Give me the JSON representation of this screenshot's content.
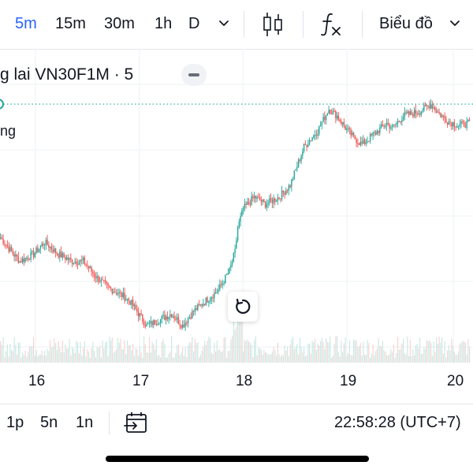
{
  "toolbar": {
    "timeframes": [
      "5m",
      "15m",
      "30m",
      "1h",
      "D"
    ],
    "active_timeframe": "5m",
    "chart_menu_label": "Biểu đồ",
    "icons": [
      "chevron-down-icon",
      "candlestick-icon",
      "function-icon",
      "chevron-down-icon"
    ]
  },
  "legend": {
    "symbol_text": "g lai VN30F1M · 5",
    "second_line": "ng"
  },
  "x_axis": {
    "labels": [
      "16",
      "17",
      "18",
      "19",
      "20"
    ]
  },
  "bottom_bar": {
    "ranges": [
      "1p",
      "5n",
      "1n"
    ],
    "clock": "22:58:28 (UTC+7)"
  },
  "colors": {
    "up": "#26a69a",
    "down": "#ef5350",
    "accent": "#2962ff",
    "last_price_line": "#26a69a"
  },
  "chart_data": {
    "type": "candlestick",
    "x_ticks": [
      "16",
      "17",
      "18",
      "19",
      "20"
    ],
    "grid": true,
    "note": "Price axis not visible in screenshot; values are relative price levels.",
    "anchors": [
      [
        0,
        40
      ],
      [
        8,
        34
      ],
      [
        14,
        30
      ],
      [
        24,
        33
      ],
      [
        32,
        38
      ],
      [
        42,
        33
      ],
      [
        52,
        30
      ],
      [
        60,
        30
      ],
      [
        70,
        23
      ],
      [
        78,
        19
      ],
      [
        84,
        17
      ],
      [
        90,
        15
      ],
      [
        94,
        13
      ],
      [
        100,
        8
      ],
      [
        106,
        3
      ],
      [
        114,
        5
      ],
      [
        124,
        8
      ],
      [
        132,
        3
      ],
      [
        140,
        9
      ],
      [
        150,
        14
      ],
      [
        158,
        18
      ],
      [
        162,
        22
      ],
      [
        166,
        26
      ],
      [
        170,
        34
      ],
      [
        172,
        44
      ],
      [
        176,
        52
      ],
      [
        184,
        57
      ],
      [
        192,
        54
      ],
      [
        202,
        57
      ],
      [
        210,
        62
      ],
      [
        220,
        78
      ],
      [
        230,
        85
      ],
      [
        238,
        94
      ],
      [
        244,
        91
      ],
      [
        250,
        86
      ],
      [
        256,
        82
      ],
      [
        262,
        79
      ],
      [
        272,
        84
      ],
      [
        280,
        88
      ],
      [
        284,
        86
      ],
      [
        292,
        91
      ],
      [
        304,
        93
      ],
      [
        312,
        96
      ],
      [
        318,
        92
      ],
      [
        324,
        89
      ],
      [
        332,
        87
      ],
      [
        340,
        88
      ]
    ],
    "last_price_level": 96
  }
}
